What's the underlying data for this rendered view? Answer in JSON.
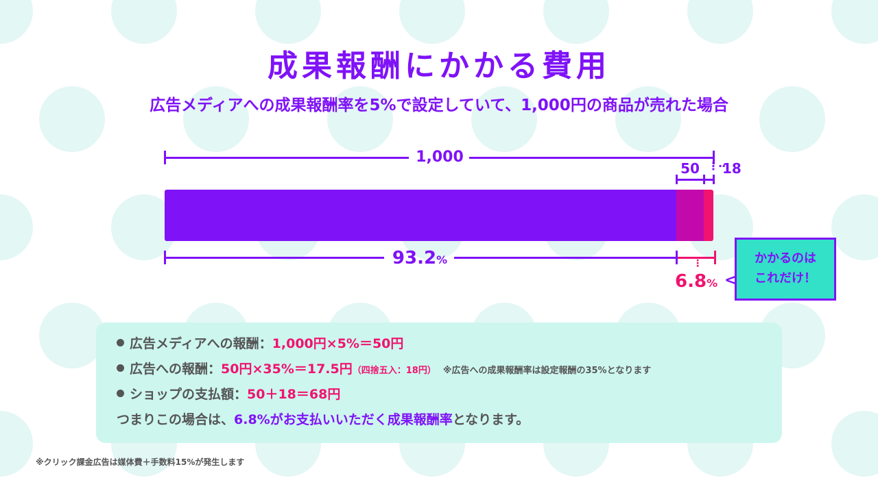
{
  "title": "成果報酬にかかる費用",
  "subtitle": "広告メディアへの成果報酬率を5%で設定していて、1,000円の商品が売れた場合",
  "colors": {
    "purple": "#7f12f7",
    "magenta": "#c20aac",
    "pink": "#f0136f",
    "teal": "#33e0c8",
    "dots": "#e3f7f5"
  },
  "chart_data": {
    "type": "bar",
    "orientation": "horizontal-stacked",
    "total_label": "1,000",
    "segments": [
      {
        "value": 932,
        "color": "#7f12f7"
      },
      {
        "value": 50,
        "label": "50",
        "color": "#c20aac"
      },
      {
        "value": 18,
        "label": "18",
        "color": "#f0136f"
      }
    ],
    "percent_main": {
      "value": "93.2",
      "unit": "%"
    },
    "percent_cost": {
      "value": "6.8",
      "unit": "%"
    }
  },
  "callout": {
    "arrow": "<",
    "line1": "かかるのは",
    "line2": "これだけ！"
  },
  "breakdown": [
    {
      "label": "広告メディアへの報酬：",
      "formula": "1,000円×5%＝50円"
    },
    {
      "label": "広告への報酬：",
      "formula": "50円×35%＝17.5円",
      "paren": "（四捨五入：18円）",
      "note": "※広告への成果報酬率は設定報酬の35%となります"
    },
    {
      "label": "ショップの支払額：",
      "formula": "50＋18＝68円"
    }
  ],
  "summary": {
    "pre": "つまりこの場合は、",
    "highlight": "6.8%がお支払いいただく成果報酬率",
    "post": "となります。"
  },
  "footnote": "※クリック課金広告は媒体費＋手数料15%が発生します"
}
